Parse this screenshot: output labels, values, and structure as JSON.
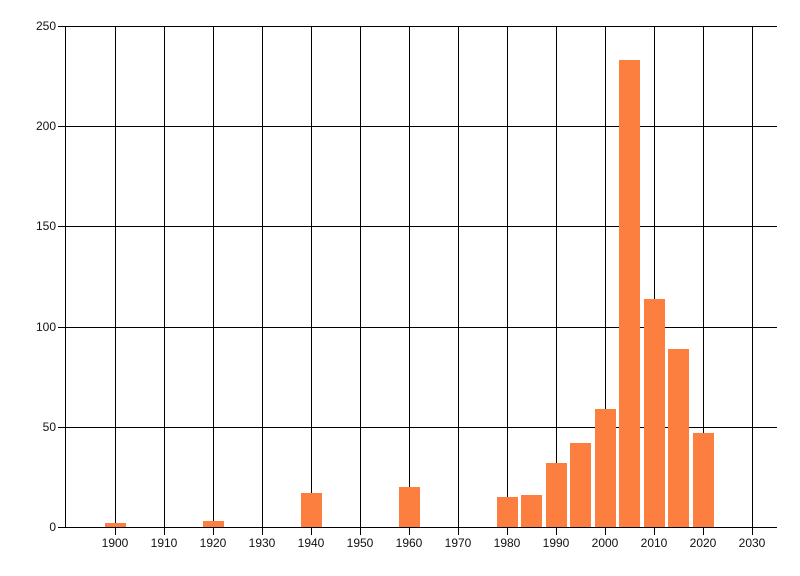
{
  "chart_data": {
    "type": "bar",
    "title": "",
    "x": [
      1900,
      1920,
      1940,
      1960,
      1980,
      1985,
      1990,
      1995,
      2000,
      2005,
      2010,
      2015,
      2020
    ],
    "values": [
      2,
      3,
      17,
      20,
      15,
      16,
      32,
      42,
      59,
      233,
      114,
      89,
      47
    ],
    "xlabel": "",
    "ylabel": "",
    "xlim": [
      1890,
      2035
    ],
    "ylim": [
      0,
      250
    ],
    "x_ticks": [
      1900,
      1910,
      1920,
      1930,
      1940,
      1950,
      1960,
      1970,
      1980,
      1990,
      2000,
      2010,
      2020,
      2030
    ],
    "y_ticks": [
      0,
      50,
      100,
      150,
      200,
      250
    ],
    "bar_width_years": 4.3,
    "grid": "on",
    "legend": "none",
    "colors": {
      "bar": "#FC7F40",
      "grid": "#000000",
      "axis": "#000000",
      "tick_label": "#111111",
      "background": "#FFFFFF"
    }
  }
}
